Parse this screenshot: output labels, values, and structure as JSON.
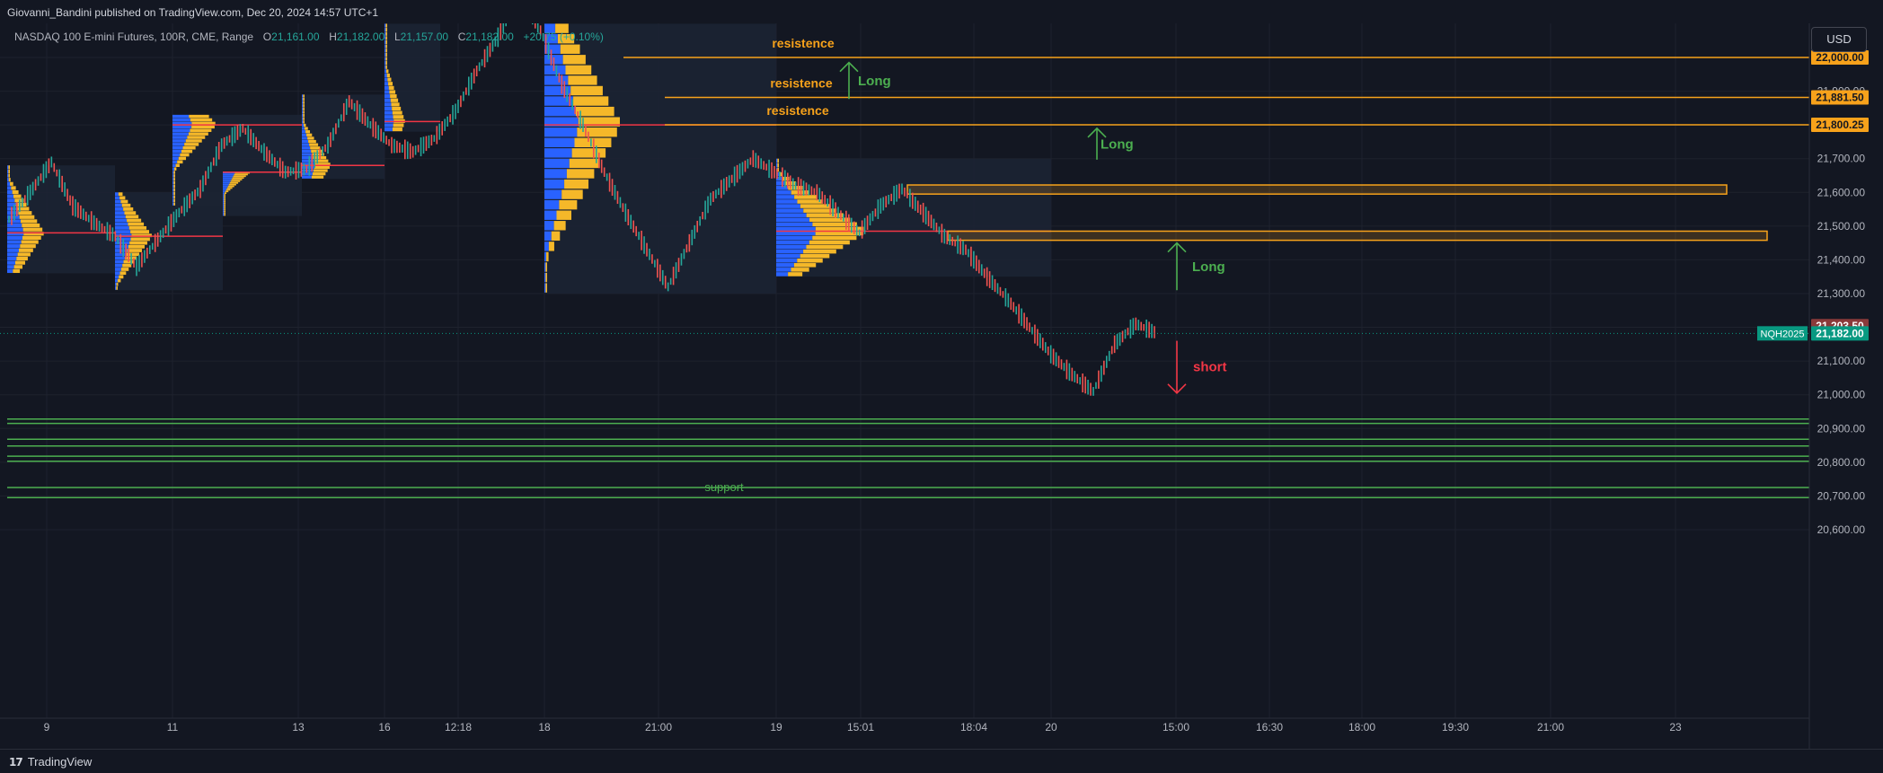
{
  "header": {
    "publisher_line": "Giovanni_Bandini published on TradingView.com, Dec 20, 2024 14:57 UTC+1"
  },
  "legend": {
    "symbol": "NASDAQ 100 E-mini Futures, 100R, CME, Range",
    "open_label": "O",
    "open_value": "21,161.00",
    "high_label": "H",
    "high_value": "21,182.00",
    "low_label": "L",
    "low_value": "21,157.00",
    "close_label": "C",
    "close_value": "21,182.00",
    "change": "+20.75 (+0.10%)"
  },
  "currency_button": "USD",
  "footer": {
    "brand": "TradingView",
    "logo_mark": "17"
  },
  "colors": {
    "background": "#131722",
    "resistance": "#f7a21b",
    "support": "#4caf50",
    "long_arrow": "#4caf50",
    "short_arrow": "#f23645",
    "last_price": "#089981",
    "prev_price": "#8b3a3a",
    "volume_up": "#f5b829",
    "volume_down": "#2962ff"
  },
  "chart_data": {
    "type": "line",
    "symbol_label": "NQH2025",
    "price_range": [
      20600,
      22080
    ],
    "y_ticks": [
      {
        "label": "22,000.00",
        "value": 22000
      },
      {
        "label": "21,900.00",
        "value": 21900
      },
      {
        "label": "21,800.00",
        "value": 21800
      },
      {
        "label": "21,700.00",
        "value": 21700
      },
      {
        "label": "21,600.00",
        "value": 21600
      },
      {
        "label": "21,500.00",
        "value": 21500
      },
      {
        "label": "21,400.00",
        "value": 21400
      },
      {
        "label": "21,300.00",
        "value": 21300
      },
      {
        "label": "21,200.00",
        "value": 21200
      },
      {
        "label": "21,100.00",
        "value": 21100
      },
      {
        "label": "21,000.00",
        "value": 21000
      },
      {
        "label": "20,900.00",
        "value": 20900
      },
      {
        "label": "20,800.00",
        "value": 20800
      },
      {
        "label": "20,700.00",
        "value": 20700
      },
      {
        "label": "20,600.00",
        "value": 20600
      }
    ],
    "x_ticks": [
      "9",
      "11",
      "13",
      "16",
      "12:18",
      "18",
      "21:00",
      "19",
      "15:01",
      "18:04",
      "20",
      "15:00",
      "16:30",
      "18:00",
      "19:30",
      "21:00",
      "23"
    ],
    "price_labels": [
      {
        "text": "22,000.00",
        "value": 22000,
        "kind": "resistance"
      },
      {
        "text": "21,881.50",
        "value": 21881.5,
        "kind": "resistance"
      },
      {
        "text": "21,800.25",
        "value": 21800.25,
        "kind": "resistance"
      },
      {
        "text": "21,203.50",
        "value": 21203.5,
        "kind": "prev"
      },
      {
        "text": "21,182.00",
        "value": 21182,
        "kind": "last"
      }
    ],
    "resistance_levels": [
      {
        "label": "resistence",
        "value": 22000,
        "from_date": "Dec 18"
      },
      {
        "label": "resistence",
        "value": 21881.5,
        "from_date": "Dec 18"
      },
      {
        "label": "resistence",
        "value": 21800.25,
        "from_date": "Dec 18"
      }
    ],
    "zones": [
      {
        "label": "",
        "top": 21622,
        "bottom": 21595,
        "from": "19 Dec 15:01",
        "to": "23 Dec"
      },
      {
        "label": "",
        "top": 21485,
        "bottom": 21458,
        "from": "19 Dec 18:04",
        "to": "23 Dec"
      }
    ],
    "support_levels": [
      {
        "label": "",
        "value": 20928
      },
      {
        "label": "",
        "value": 20915
      },
      {
        "label": "",
        "value": 20868
      },
      {
        "label": "",
        "value": 20848
      },
      {
        "label": "",
        "value": 20818
      },
      {
        "label": "",
        "value": 20803
      },
      {
        "label": "support",
        "value": 20725
      },
      {
        "label": "",
        "value": 20695
      }
    ],
    "annotations": [
      {
        "text": "Long",
        "direction": "up",
        "from": 21877,
        "to": 21985
      },
      {
        "text": "Long",
        "direction": "up",
        "from": 21697,
        "to": 21790
      },
      {
        "text": "Long",
        "direction": "up",
        "from": 21310,
        "to": 21450
      },
      {
        "text": "short",
        "direction": "down",
        "from": 21160,
        "to": 21005
      }
    ],
    "price_path": [
      21520,
      21600,
      21690,
      21560,
      21510,
      21470,
      21380,
      21460,
      21540,
      21610,
      21740,
      21790,
      21720,
      21660,
      21670,
      21740,
      21870,
      21800,
      21740,
      21720,
      21760,
      21840,
      21960,
      22060,
      22200,
      22080,
      21920,
      21800,
      21660,
      21540,
      21430,
      21320,
      21450,
      21580,
      21640,
      21700,
      21660,
      21620,
      21600,
      21540,
      21480,
      21560,
      21610,
      21540,
      21470,
      21430,
      21350,
      21280,
      21200,
      21120,
      21060,
      21010,
      21150,
      21210,
      21182
    ]
  }
}
